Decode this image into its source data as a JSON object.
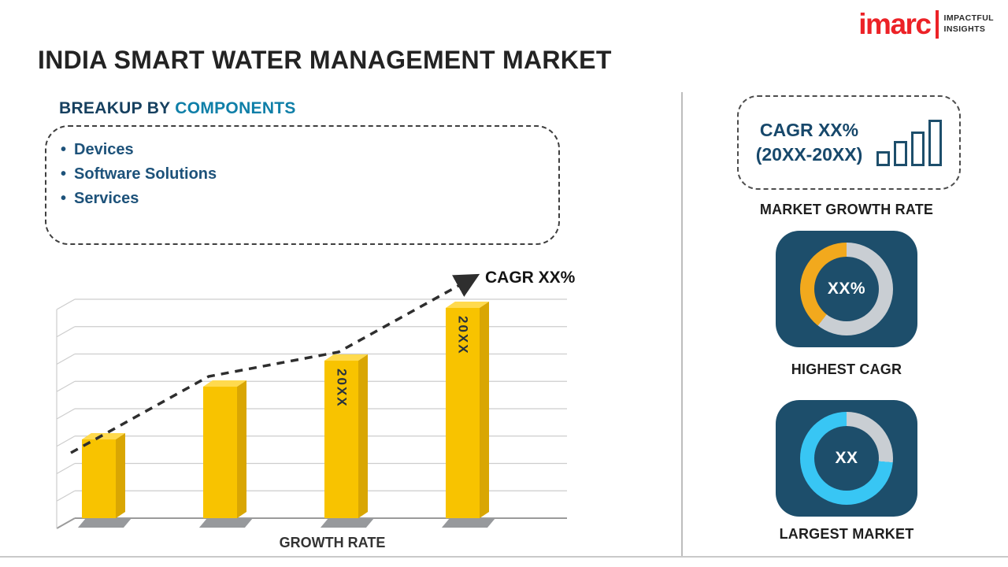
{
  "logo": {
    "brand": "imarc",
    "tagline_top": "IMPACTFUL",
    "tagline_bottom": "INSIGHTS"
  },
  "title": "INDIA SMART WATER MANAGEMENT MARKET",
  "breakup": {
    "heading_prefix": "BREAKUP BY ",
    "heading_accent": "COMPONENTS",
    "items": [
      "Devices",
      "Software Solutions",
      "Services"
    ]
  },
  "chart_data": {
    "type": "bar",
    "title": "",
    "xlabel": "GROWTH RATE",
    "ylabel": "",
    "categories": [
      "",
      "",
      "20XX",
      "20XX"
    ],
    "values": [
      36,
      60,
      72,
      96
    ],
    "bar_labels": [
      "",
      "",
      "20XX",
      "20XX"
    ],
    "ylim": [
      0,
      100
    ],
    "grid": true,
    "legend": "none",
    "trend": {
      "label": "CAGR XX%",
      "style": "dashed-arrow-ascending"
    },
    "bar_color": "#F8C300",
    "bar_side_color": "#D9A603",
    "bar_top_color": "#FFDA4E"
  },
  "right_panel": {
    "cagr_box": {
      "line1": "CAGR XX%",
      "line2": "(20XX-20XX)",
      "icon": "bar-chart-icon"
    },
    "market_growth_rate_label": "MARKET GROWTH RATE",
    "highest_cagr": {
      "center_value": "XX%",
      "caption": "HIGHEST CAGR",
      "ring_segments": [
        {
          "color": "#C9CED3",
          "from_deg": 0,
          "to_deg": 218
        },
        {
          "color": "#F2A91D",
          "from_deg": 218,
          "to_deg": 360
        }
      ]
    },
    "largest_market": {
      "center_value": "XX",
      "caption": "LARGEST MARKET",
      "ring_segments": [
        {
          "color": "#C9CED3",
          "from_deg": 0,
          "to_deg": 95
        },
        {
          "color": "#38C6F4",
          "from_deg": 95,
          "to_deg": 360
        }
      ]
    }
  },
  "colors": {
    "navy": "#1C4E6E",
    "heading_navy": "#16405F",
    "accent_teal": "#0F7FA8",
    "logo_red": "#EC2227",
    "card_navy": "#1D4E6B"
  }
}
